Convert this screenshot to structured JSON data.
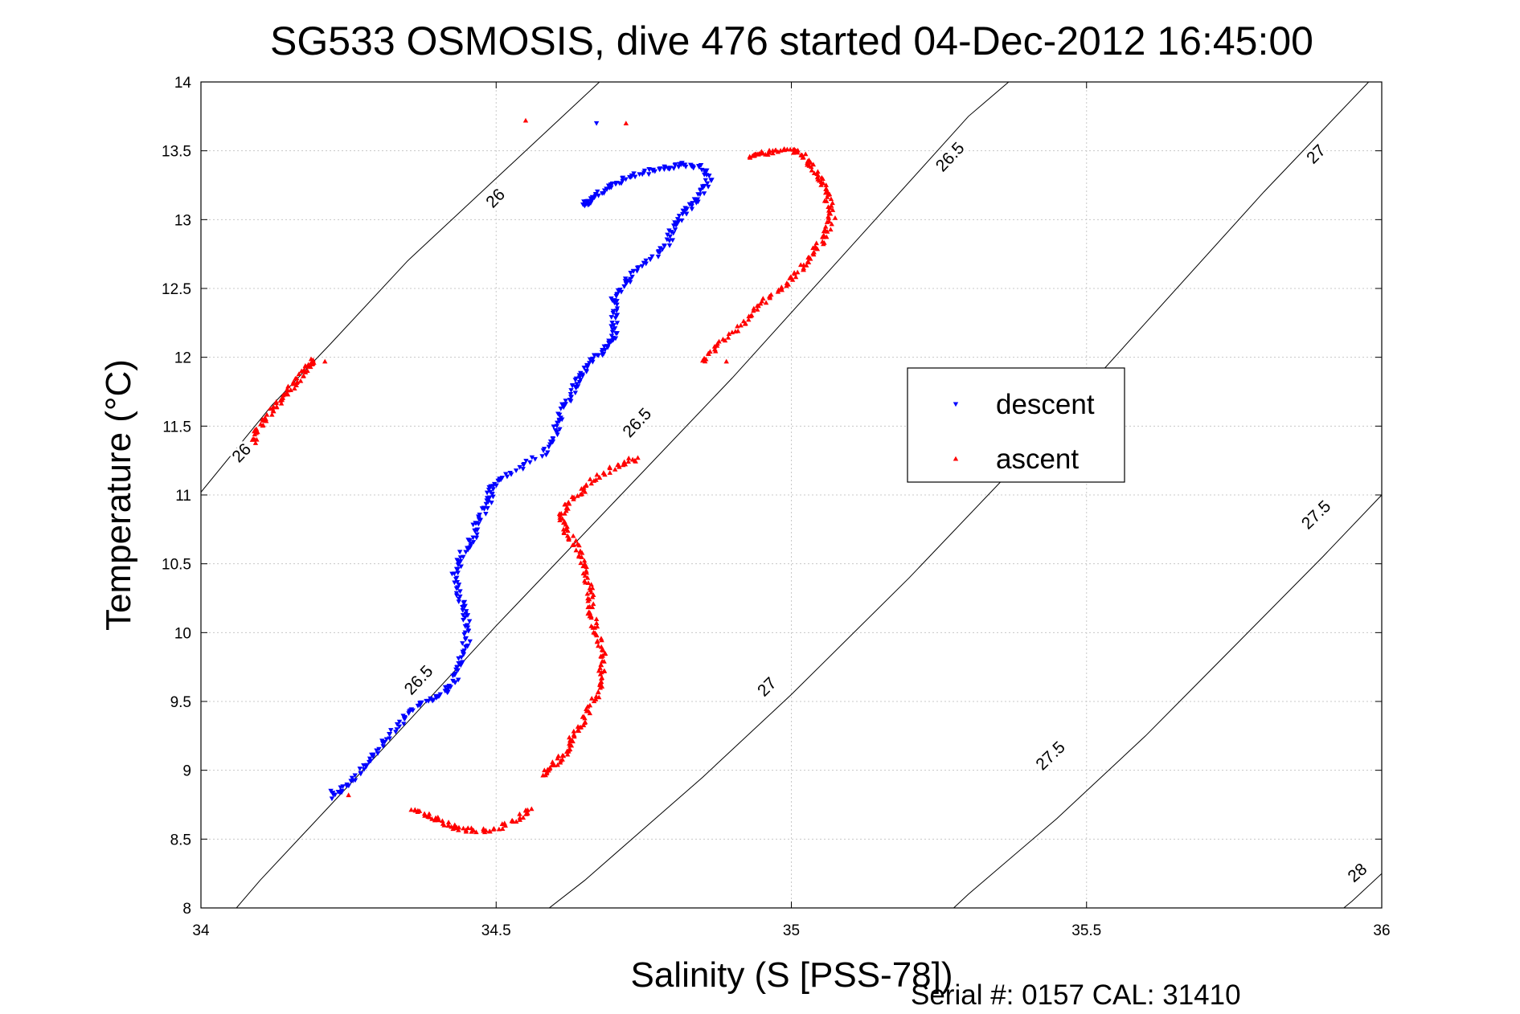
{
  "chart_data": {
    "type": "scatter",
    "title": "SG533 OSMOSIS, dive 476 started 04-Dec-2012 16:45:00",
    "xlabel": "Salinity (S [PSS-78])",
    "ylabel": "Temperature (°C)",
    "xlim": [
      34,
      36
    ],
    "ylim": [
      8,
      14
    ],
    "xticks": [
      "34",
      "34.5",
      "35",
      "35.5",
      "36"
    ],
    "yticks": [
      "8",
      "8.5",
      "9",
      "9.5",
      "10",
      "10.5",
      "11",
      "11.5",
      "12",
      "12.5",
      "13",
      "13.5",
      "14"
    ],
    "grid": true,
    "legend_position": "right-center",
    "footer": "Serial #: 0157  CAL: 31410",
    "series": [
      {
        "name": "descent",
        "color": "#0000ff",
        "marker": "triangle-down",
        "path": [
          [
            34.22,
            8.8
          ],
          [
            34.25,
            8.9
          ],
          [
            34.28,
            9.05
          ],
          [
            34.31,
            9.2
          ],
          [
            34.34,
            9.35
          ],
          [
            34.37,
            9.48
          ],
          [
            34.41,
            9.55
          ],
          [
            34.43,
            9.65
          ],
          [
            34.44,
            9.8
          ],
          [
            34.45,
            9.95
          ],
          [
            34.45,
            10.1
          ],
          [
            34.44,
            10.25
          ],
          [
            34.43,
            10.4
          ],
          [
            34.44,
            10.55
          ],
          [
            34.46,
            10.68
          ],
          [
            34.47,
            10.82
          ],
          [
            34.49,
            10.95
          ],
          [
            34.49,
            11.05
          ],
          [
            34.52,
            11.15
          ],
          [
            34.58,
            11.3
          ],
          [
            34.6,
            11.45
          ],
          [
            34.61,
            11.6
          ],
          [
            34.63,
            11.75
          ],
          [
            34.64,
            11.85
          ],
          [
            34.66,
            11.97
          ],
          [
            34.68,
            12.05
          ],
          [
            34.7,
            12.15
          ],
          [
            34.7,
            12.3
          ],
          [
            34.7,
            12.45
          ],
          [
            34.72,
            12.55
          ],
          [
            34.75,
            12.68
          ],
          [
            34.79,
            12.8
          ],
          [
            34.8,
            12.95
          ],
          [
            34.82,
            13.05
          ],
          [
            34.84,
            13.15
          ],
          [
            34.86,
            13.28
          ],
          [
            34.85,
            13.38
          ],
          [
            34.82,
            13.4
          ],
          [
            34.79,
            13.38
          ],
          [
            34.76,
            13.35
          ],
          [
            34.72,
            13.3
          ],
          [
            34.69,
            13.23
          ],
          [
            34.66,
            13.15
          ],
          [
            34.65,
            13.1
          ]
        ],
        "extra_points": [
          [
            34.67,
            13.7
          ],
          [
            34.22,
            8.85
          ]
        ]
      },
      {
        "name": "ascent",
        "color": "#ff0000",
        "marker": "triangle-up",
        "segments": [
          [
            [
              34.09,
              11.38
            ],
            [
              34.1,
              11.5
            ],
            [
              34.12,
              11.62
            ],
            [
              34.14,
              11.72
            ],
            [
              34.16,
              11.82
            ],
            [
              34.18,
              11.92
            ],
            [
              34.19,
              11.98
            ]
          ],
          [
            [
              34.36,
              8.72
            ],
            [
              34.39,
              8.66
            ],
            [
              34.42,
              8.6
            ],
            [
              34.45,
              8.57
            ],
            [
              34.49,
              8.56
            ],
            [
              34.53,
              8.63
            ],
            [
              34.56,
              8.72
            ]
          ],
          [
            [
              34.58,
              8.97
            ],
            [
              34.6,
              9.05
            ],
            [
              34.62,
              9.15
            ],
            [
              34.63,
              9.25
            ],
            [
              34.65,
              9.38
            ],
            [
              34.67,
              9.55
            ],
            [
              34.68,
              9.7
            ],
            [
              34.68,
              9.85
            ],
            [
              34.67,
              10.0
            ],
            [
              34.66,
              10.15
            ],
            [
              34.66,
              10.3
            ],
            [
              34.65,
              10.45
            ],
            [
              34.64,
              10.6
            ],
            [
              34.62,
              10.72
            ],
            [
              34.61,
              10.85
            ],
            [
              34.63,
              10.97
            ],
            [
              34.66,
              11.1
            ],
            [
              34.7,
              11.2
            ],
            [
              34.74,
              11.27
            ]
          ],
          [
            [
              34.85,
              11.97
            ],
            [
              34.88,
              12.1
            ],
            [
              34.92,
              12.25
            ],
            [
              34.95,
              12.4
            ],
            [
              34.99,
              12.52
            ],
            [
              35.02,
              12.65
            ],
            [
              35.04,
              12.78
            ],
            [
              35.06,
              12.9
            ],
            [
              35.07,
              13.05
            ],
            [
              35.06,
              13.18
            ],
            [
              35.05,
              13.3
            ],
            [
              35.03,
              13.42
            ],
            [
              35.01,
              13.5
            ],
            [
              34.98,
              13.5
            ],
            [
              34.95,
              13.48
            ],
            [
              34.93,
              13.45
            ]
          ]
        ],
        "extra_points": [
          [
            34.55,
            13.72
          ],
          [
            34.72,
            13.7
          ],
          [
            34.21,
            11.97
          ],
          [
            34.25,
            8.82
          ],
          [
            34.89,
            11.97
          ]
        ]
      }
    ],
    "contours": [
      {
        "label": "26",
        "points": [
          [
            34.0,
            11.02
          ],
          [
            34.12,
            11.65
          ],
          [
            34.22,
            12.1
          ],
          [
            34.35,
            12.7
          ],
          [
            34.5,
            13.3
          ],
          [
            34.75,
            14.3
          ]
        ],
        "label_at": [
          [
            34.5,
            13.15
          ],
          [
            34.07,
            11.3
          ]
        ]
      },
      {
        "label": "26.5",
        "points": [
          [
            34.0,
            7.7
          ],
          [
            34.1,
            8.2
          ],
          [
            34.22,
            8.75
          ],
          [
            34.35,
            9.35
          ],
          [
            34.5,
            10.05
          ],
          [
            34.7,
            10.95
          ],
          [
            34.9,
            11.85
          ],
          [
            35.1,
            12.8
          ],
          [
            35.3,
            13.75
          ],
          [
            35.45,
            14.3
          ]
        ],
        "label_at": [
          [
            34.74,
            11.52
          ],
          [
            34.37,
            9.65
          ],
          [
            35.27,
            13.45
          ]
        ]
      },
      {
        "label": "27",
        "points": [
          [
            34.5,
            7.7
          ],
          [
            34.65,
            8.2
          ],
          [
            34.85,
            8.95
          ],
          [
            35.0,
            9.55
          ],
          [
            35.2,
            10.4
          ],
          [
            35.4,
            11.3
          ],
          [
            35.6,
            12.25
          ],
          [
            35.8,
            13.2
          ],
          [
            36.0,
            14.1
          ]
        ],
        "label_at": [
          [
            34.96,
            9.6
          ],
          [
            35.89,
            13.47
          ]
        ]
      },
      {
        "label": "27.5",
        "points": [
          [
            35.2,
            7.7
          ],
          [
            35.3,
            8.1
          ],
          [
            35.45,
            8.65
          ],
          [
            35.6,
            9.25
          ],
          [
            35.75,
            9.9
          ],
          [
            35.9,
            10.55
          ],
          [
            36.0,
            11.0
          ]
        ],
        "label_at": [
          [
            35.44,
            9.1
          ],
          [
            35.89,
            10.85
          ]
        ]
      },
      {
        "label": "28",
        "points": [
          [
            35.85,
            7.7
          ],
          [
            35.95,
            8.05
          ],
          [
            36.0,
            8.25
          ]
        ],
        "label_at": [
          [
            35.96,
            8.25
          ]
        ]
      }
    ]
  }
}
